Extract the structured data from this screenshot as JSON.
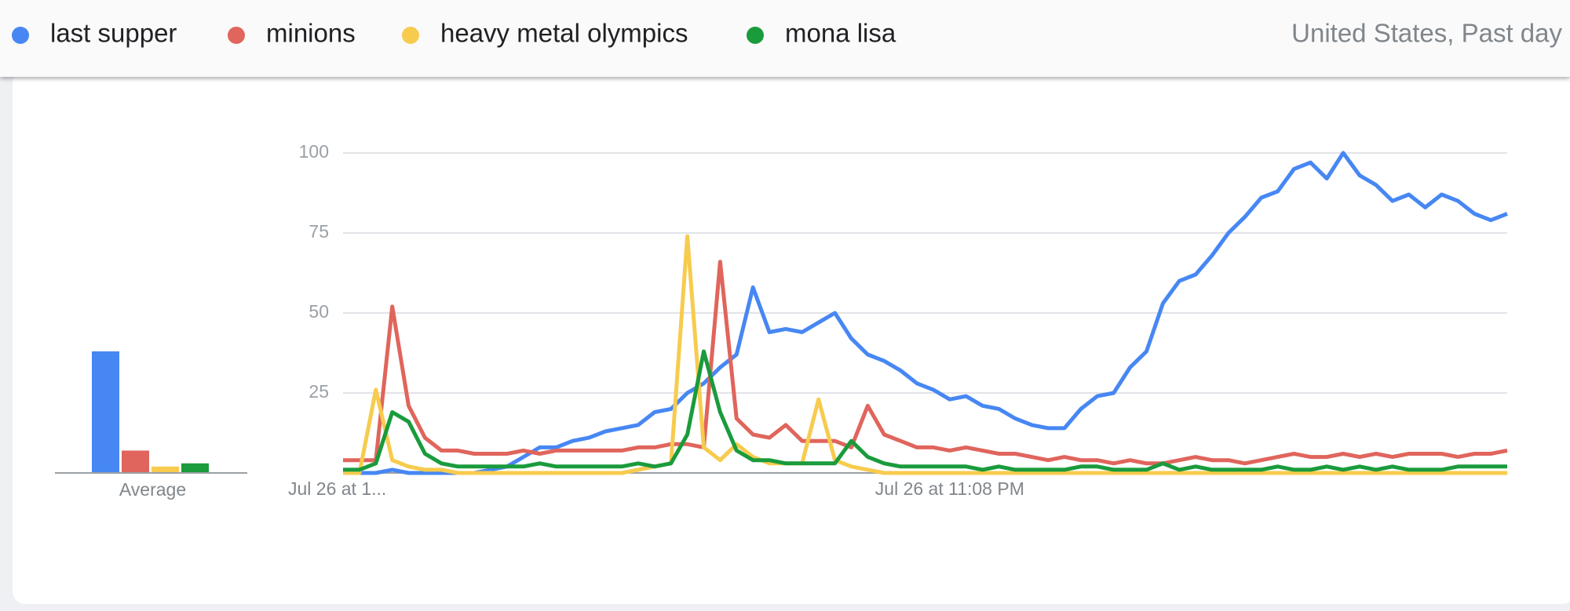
{
  "header": {
    "region_period": "United States, Past day"
  },
  "chart_data": [
    {
      "type": "line",
      "legend": "top",
      "grid": true,
      "ylim": [
        0,
        100
      ],
      "yticks": [
        25,
        50,
        75,
        100
      ],
      "categories": [
        "Jul 26 at 1...",
        null,
        null,
        null,
        null,
        null,
        null,
        null,
        null,
        null,
        null,
        null,
        null,
        null,
        null,
        null,
        null,
        null,
        null,
        null,
        null,
        null,
        null,
        null,
        null,
        null,
        null,
        null,
        null,
        null,
        null,
        null,
        null,
        null,
        null,
        null,
        null,
        "Jul 26 at 11:08 PM",
        null,
        null,
        null,
        null,
        null,
        null,
        null,
        null,
        null,
        null,
        null,
        null,
        null,
        null,
        null,
        null,
        null,
        null,
        null,
        null,
        null,
        null,
        null,
        null,
        null,
        null,
        null,
        null,
        null,
        null,
        null,
        null,
        null,
        null
      ],
      "series": [
        {
          "name": "last supper",
          "color": "#4787f3",
          "values": [
            0,
            0,
            0,
            1,
            0,
            0,
            0,
            0,
            0,
            1,
            2,
            5,
            8,
            8,
            10,
            11,
            13,
            14,
            15,
            19,
            20,
            25,
            28,
            33,
            37,
            58,
            44,
            45,
            44,
            47,
            50,
            42,
            37,
            35,
            32,
            28,
            26,
            23,
            24,
            21,
            20,
            17,
            15,
            14,
            14,
            20,
            24,
            25,
            33,
            38,
            53,
            60,
            62,
            68,
            75,
            80,
            86,
            88,
            95,
            97,
            92,
            100,
            93,
            90,
            85,
            87,
            83,
            87,
            85,
            81,
            79,
            81
          ]
        },
        {
          "name": "minions",
          "color": "#e0655c",
          "values": [
            4,
            4,
            4,
            52,
            21,
            11,
            7,
            7,
            6,
            6,
            6,
            7,
            6,
            7,
            7,
            7,
            7,
            7,
            8,
            8,
            9,
            9,
            8,
            66,
            17,
            12,
            11,
            15,
            10,
            10,
            10,
            8,
            21,
            12,
            10,
            8,
            8,
            7,
            8,
            7,
            6,
            6,
            5,
            4,
            5,
            4,
            4,
            3,
            4,
            3,
            3,
            4,
            5,
            4,
            4,
            3,
            4,
            5,
            6,
            5,
            5,
            6,
            5,
            6,
            5,
            6,
            6,
            6,
            5,
            6,
            6,
            7
          ]
        },
        {
          "name": "heavy metal olympics",
          "color": "#f7cb4d",
          "values": [
            0,
            0,
            26,
            4,
            2,
            1,
            1,
            0,
            0,
            0,
            0,
            0,
            0,
            0,
            0,
            0,
            0,
            0,
            1,
            2,
            3,
            74,
            8,
            4,
            9,
            5,
            3,
            3,
            3,
            23,
            4,
            2,
            1,
            0,
            0,
            0,
            0,
            0,
            0,
            0,
            0,
            0,
            0,
            0,
            0,
            0,
            0,
            0,
            0,
            0,
            0,
            0,
            0,
            0,
            0,
            0,
            0,
            0,
            0,
            0,
            0,
            0,
            0,
            0,
            0,
            0,
            0,
            0,
            0,
            0,
            0,
            0
          ]
        },
        {
          "name": "mona lisa",
          "color": "#1a9b3c",
          "values": [
            1,
            1,
            3,
            19,
            16,
            6,
            3,
            2,
            2,
            2,
            2,
            2,
            3,
            2,
            2,
            2,
            2,
            2,
            3,
            2,
            3,
            12,
            38,
            19,
            7,
            4,
            4,
            3,
            3,
            3,
            3,
            10,
            5,
            3,
            2,
            2,
            2,
            2,
            2,
            1,
            2,
            1,
            1,
            1,
            1,
            2,
            2,
            1,
            1,
            1,
            3,
            1,
            2,
            1,
            1,
            1,
            1,
            2,
            1,
            1,
            2,
            1,
            2,
            1,
            2,
            1,
            1,
            1,
            2,
            2,
            2,
            2
          ]
        }
      ]
    },
    {
      "type": "bar",
      "ylim": [
        0,
        100
      ],
      "categories": [
        "Average"
      ],
      "series": [
        {
          "color": "#4787f3",
          "values": [
            38
          ]
        },
        {
          "color": "#e0655c",
          "values": [
            7
          ]
        },
        {
          "color": "#f7cb4d",
          "values": [
            2
          ]
        },
        {
          "color": "#1a9b3c",
          "values": [
            3
          ]
        }
      ]
    }
  ]
}
